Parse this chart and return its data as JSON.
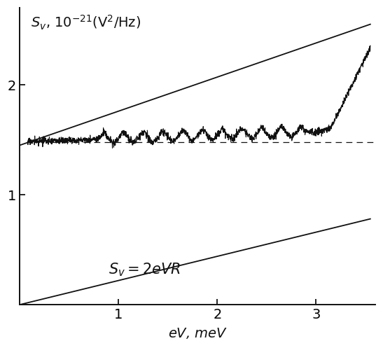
{
  "title": "$S_v$, $10^{-21}$(V$^2$/Hz)",
  "xlabel": "$eV$, meV",
  "ylabel_ticks": [
    1,
    2
  ],
  "xlabel_ticks": [
    1,
    2,
    3
  ],
  "xlim": [
    0,
    3.6
  ],
  "ylim": [
    0,
    2.7
  ],
  "dashed_y": 1.48,
  "shot_noise_label": "$S_v=2eVR$",
  "background_color": "#ffffff",
  "line_color": "#111111",
  "font_size": 14,
  "upper_line_x0": 0.0,
  "upper_line_y0": 1.45,
  "upper_line_x1": 3.55,
  "upper_line_y1": 2.55,
  "shot_x0": 0.0,
  "shot_y0": 0.0,
  "shot_x1": 3.55,
  "shot_y1": 0.78
}
